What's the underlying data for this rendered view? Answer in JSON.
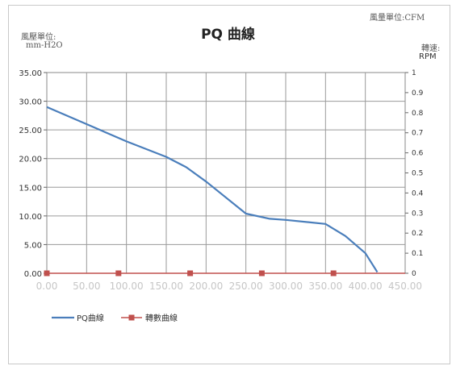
{
  "header": {
    "flow_unit": "風量單位:CFM",
    "pressure_unit_label": "風壓單位:",
    "pressure_unit": "mm-H2O",
    "speed_label": "轉速:",
    "speed_unit": "RPM"
  },
  "chart_data": {
    "type": "line",
    "title": "PQ 曲線",
    "x_ticks": [
      "0.00",
      "50.00",
      "100.00",
      "150.00",
      "200.00",
      "250.00",
      "300.00",
      "350.00",
      "400.00",
      "450.00"
    ],
    "y_left_ticks": [
      "0.00",
      "5.00",
      "10.00",
      "15.00",
      "20.00",
      "25.00",
      "30.00",
      "35.00"
    ],
    "y_right_ticks": [
      "0",
      "0.1",
      "0.2",
      "0.3",
      "0.4",
      "0.5",
      "0.6",
      "0.7",
      "0.8",
      "0.9",
      "1"
    ],
    "xlim": [
      0,
      450
    ],
    "ylim_left": [
      0,
      35
    ],
    "ylim_right": [
      0,
      1
    ],
    "grid": true,
    "legend_position": "bottom-left",
    "series": [
      {
        "name": "PQ曲線",
        "axis": "left",
        "color": "#4a7ebb",
        "x": [
          0,
          50,
          100,
          150,
          175,
          200,
          250,
          280,
          300,
          350,
          375,
          400,
          415
        ],
        "y": [
          29.0,
          26.0,
          23.0,
          20.3,
          18.5,
          16.0,
          10.4,
          9.5,
          9.3,
          8.6,
          6.5,
          3.5,
          0.2
        ]
      },
      {
        "name": "轉數曲線",
        "axis": "right",
        "color": "#c0504d",
        "x": [
          0,
          90,
          180,
          270,
          360,
          450
        ],
        "y": [
          0,
          0,
          0,
          0,
          0,
          0
        ]
      }
    ]
  }
}
